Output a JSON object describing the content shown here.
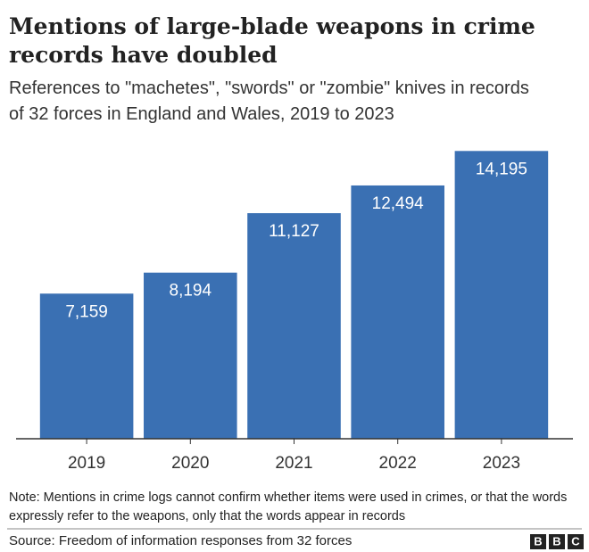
{
  "chart_data": {
    "type": "bar",
    "title": "Mentions of large-blade weapons in crime records have doubled",
    "subtitle": "References to \"machetes\", \"swords\" or \"zombie\" knives in records of 32 forces in England and Wales, 2019 to 2023",
    "categories": [
      "2019",
      "2020",
      "2021",
      "2022",
      "2023"
    ],
    "values": [
      7159,
      8194,
      11127,
      12494,
      14195
    ],
    "value_labels": [
      "7,159",
      "8,194",
      "11,127",
      "12,494",
      "14,195"
    ],
    "color": "#3a70b3",
    "ylim": [
      0,
      15000
    ],
    "note": "Note: Mentions in crime logs cannot confirm whether items were used in crimes, or that the words expressly refer to the weapons, only that the words appear in records",
    "source": "Source: Freedom of information responses from 32 forces"
  },
  "logo": [
    "B",
    "B",
    "C"
  ]
}
